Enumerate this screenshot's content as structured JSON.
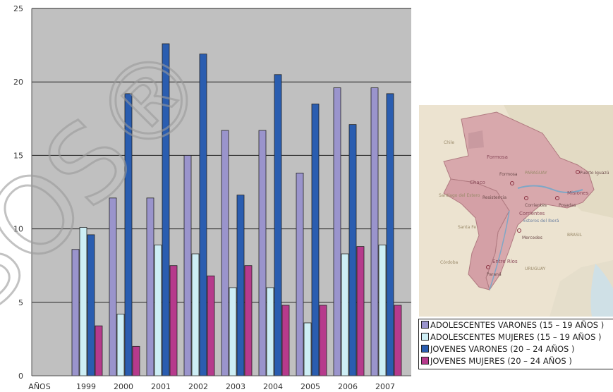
{
  "chart_data": {
    "type": "bar",
    "x_label_prefix": "AÑOS",
    "categories": [
      "1999",
      "2000",
      "2001",
      "2002",
      "2003",
      "2004",
      "2005",
      "2006",
      "2007"
    ],
    "ylim": [
      0,
      25
    ],
    "yticks": [
      "0",
      "5",
      "10",
      "15",
      "20",
      "25"
    ],
    "grid": true,
    "legend_position": "bottom-right",
    "series": [
      {
        "name": "ADOLESCENTES VARONES   (15 – 19 AÑOS )",
        "color": "#9a94cc",
        "values": [
          8.6,
          12.1,
          12.1,
          15.0,
          16.7,
          16.7,
          13.8,
          19.6,
          19.6
        ]
      },
      {
        "name": "ADOLESCENTES MUJERES   (15 – 19 AÑOS )",
        "color": "#cdeef5",
        "values": [
          10.1,
          4.2,
          8.9,
          8.3,
          6.0,
          6.0,
          3.6,
          8.3,
          8.9
        ]
      },
      {
        "name": "JOVENES VARONES   (20 – 24 AÑOS )",
        "color": "#2a5db0",
        "values": [
          9.6,
          19.2,
          22.6,
          21.9,
          12.3,
          20.5,
          18.5,
          17.1,
          19.2
        ]
      },
      {
        "name": "JOVENES MUJERES   (20 – 24 AÑOS )",
        "color": "#b63a8c",
        "values": [
          3.4,
          2.0,
          7.5,
          6.8,
          7.5,
          4.8,
          4.8,
          8.8,
          4.8
        ]
      }
    ]
  },
  "map": {
    "labels": [
      "Formosa",
      "Chaco",
      "Formosa",
      "PARAGUAY",
      "Puerto Iguazú",
      "Resistencia",
      "Corrientes",
      "Posadas",
      "Misiones",
      "Corrientes",
      "Esteros del Iberá",
      "Mercedes",
      "BRASIL",
      "Entre Ríos",
      "Paraná",
      "URUGUAY",
      "Santiago del Estero",
      "Santa Fe",
      "Córdoba",
      "Chile"
    ]
  },
  "watermark": {
    "text": "SOS®"
  }
}
